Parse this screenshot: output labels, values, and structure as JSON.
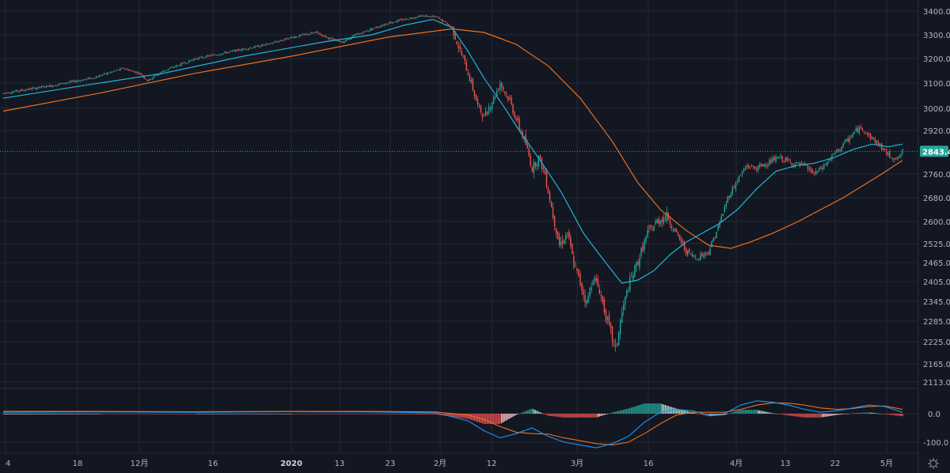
{
  "colors": {
    "background": "#131722",
    "grid": "#262a35",
    "up": "#26a69a",
    "down": "#ef5350",
    "ma_fast": "#21b5d6",
    "ma_slow": "#e8711f",
    "last_price": "#26a69a",
    "text": "#b2b5be"
  },
  "icons": {
    "settings": "gear-icon"
  },
  "last_price_label": "2843.4",
  "chart_data": {
    "type": "candlestick",
    "panels": [
      "price",
      "macd"
    ],
    "price_axis": {
      "labels": [
        "3400.0",
        "3300.0",
        "3200.0",
        "3100.0",
        "3000.0",
        "2920.0",
        "2843.4",
        "2760.0",
        "2680.0",
        "2600.0",
        "2525.0",
        "2465.0",
        "2405.0",
        "2345.0",
        "2285.0",
        "2225.0",
        "2165.0",
        "2113.0"
      ],
      "ylim": [
        2113,
        3420
      ]
    },
    "macd_axis": {
      "labels": [
        "0.0",
        "-100.0"
      ]
    },
    "x_axis": {
      "labels": [
        "4",
        "18",
        "12月",
        "16",
        "2020",
        "13",
        "23",
        "2月",
        "12",
        "3月",
        "16",
        "4月",
        "13",
        "22",
        "5月"
      ]
    },
    "last_price": 2843.4,
    "price_path": [
      [
        0,
        3060
      ],
      [
        30,
        3090
      ],
      [
        55,
        3120
      ],
      [
        75,
        3160
      ],
      [
        85,
        3140
      ],
      [
        90,
        3110
      ],
      [
        100,
        3150
      ],
      [
        120,
        3200
      ],
      [
        150,
        3240
      ],
      [
        165,
        3260
      ],
      [
        180,
        3290
      ],
      [
        195,
        3310
      ],
      [
        205,
        3280
      ],
      [
        212,
        3270
      ],
      [
        220,
        3300
      ],
      [
        240,
        3350
      ],
      [
        260,
        3380
      ],
      [
        270,
        3375
      ],
      [
        276,
        3350
      ],
      [
        280,
        3330
      ],
      [
        284,
        3250
      ],
      [
        288,
        3180
      ],
      [
        292,
        3100
      ],
      [
        296,
        3010
      ],
      [
        300,
        2970
      ],
      [
        306,
        3040
      ],
      [
        310,
        3100
      ],
      [
        316,
        3030
      ],
      [
        320,
        2960
      ],
      [
        326,
        2870
      ],
      [
        330,
        2780
      ],
      [
        334,
        2820
      ],
      [
        338,
        2760
      ],
      [
        343,
        2620
      ],
      [
        347,
        2520
      ],
      [
        352,
        2560
      ],
      [
        356,
        2460
      ],
      [
        360,
        2400
      ],
      [
        364,
        2340
      ],
      [
        368,
        2420
      ],
      [
        372,
        2380
      ],
      [
        376,
        2300
      ],
      [
        382,
        2200
      ],
      [
        386,
        2310
      ],
      [
        390,
        2390
      ],
      [
        396,
        2470
      ],
      [
        402,
        2560
      ],
      [
        408,
        2600
      ],
      [
        414,
        2620
      ],
      [
        420,
        2560
      ],
      [
        426,
        2500
      ],
      [
        432,
        2480
      ],
      [
        440,
        2500
      ],
      [
        446,
        2580
      ],
      [
        452,
        2680
      ],
      [
        458,
        2740
      ],
      [
        464,
        2790
      ],
      [
        470,
        2780
      ],
      [
        476,
        2800
      ],
      [
        484,
        2820
      ],
      [
        492,
        2800
      ],
      [
        500,
        2790
      ],
      [
        506,
        2760
      ],
      [
        512,
        2790
      ],
      [
        518,
        2830
      ],
      [
        526,
        2880
      ],
      [
        532,
        2920
      ],
      [
        536,
        2930
      ],
      [
        540,
        2900
      ],
      [
        546,
        2870
      ],
      [
        552,
        2830
      ],
      [
        558,
        2815
      ],
      [
        561,
        2843
      ]
    ],
    "ma_fast_path": [
      [
        0,
        3040
      ],
      [
        50,
        3090
      ],
      [
        100,
        3140
      ],
      [
        150,
        3210
      ],
      [
        200,
        3270
      ],
      [
        230,
        3300
      ],
      [
        250,
        3340
      ],
      [
        268,
        3365
      ],
      [
        280,
        3330
      ],
      [
        290,
        3230
      ],
      [
        300,
        3120
      ],
      [
        312,
        3010
      ],
      [
        322,
        2920
      ],
      [
        335,
        2810
      ],
      [
        348,
        2700
      ],
      [
        362,
        2560
      ],
      [
        375,
        2470
      ],
      [
        386,
        2400
      ],
      [
        396,
        2410
      ],
      [
        406,
        2440
      ],
      [
        416,
        2490
      ],
      [
        426,
        2530
      ],
      [
        436,
        2560
      ],
      [
        446,
        2590
      ],
      [
        458,
        2640
      ],
      [
        470,
        2710
      ],
      [
        482,
        2770
      ],
      [
        494,
        2790
      ],
      [
        506,
        2800
      ],
      [
        518,
        2820
      ],
      [
        530,
        2850
      ],
      [
        542,
        2870
      ],
      [
        552,
        2860
      ],
      [
        561,
        2870
      ]
    ],
    "ma_slow_path": [
      [
        0,
        2990
      ],
      [
        60,
        3060
      ],
      [
        120,
        3140
      ],
      [
        180,
        3210
      ],
      [
        240,
        3290
      ],
      [
        280,
        3325
      ],
      [
        300,
        3310
      ],
      [
        320,
        3260
      ],
      [
        340,
        3170
      ],
      [
        360,
        3040
      ],
      [
        380,
        2880
      ],
      [
        396,
        2730
      ],
      [
        410,
        2640
      ],
      [
        426,
        2570
      ],
      [
        440,
        2520
      ],
      [
        454,
        2510
      ],
      [
        466,
        2530
      ],
      [
        480,
        2560
      ],
      [
        496,
        2600
      ],
      [
        510,
        2640
      ],
      [
        524,
        2680
      ],
      [
        536,
        2720
      ],
      [
        548,
        2760
      ],
      [
        561,
        2810
      ]
    ],
    "macd_line": [
      [
        0,
        5
      ],
      [
        60,
        6
      ],
      [
        120,
        5
      ],
      [
        180,
        7
      ],
      [
        230,
        6
      ],
      [
        270,
        3
      ],
      [
        290,
        -25
      ],
      [
        300,
        -60
      ],
      [
        310,
        -85
      ],
      [
        320,
        -70
      ],
      [
        330,
        -50
      ],
      [
        340,
        -80
      ],
      [
        350,
        -100
      ],
      [
        360,
        -110
      ],
      [
        370,
        -120
      ],
      [
        380,
        -105
      ],
      [
        390,
        -80
      ],
      [
        400,
        -30
      ],
      [
        410,
        5
      ],
      [
        420,
        15
      ],
      [
        430,
        10
      ],
      [
        440,
        -5
      ],
      [
        450,
        0
      ],
      [
        460,
        30
      ],
      [
        470,
        45
      ],
      [
        480,
        40
      ],
      [
        490,
        30
      ],
      [
        500,
        15
      ],
      [
        510,
        5
      ],
      [
        520,
        10
      ],
      [
        530,
        20
      ],
      [
        540,
        30
      ],
      [
        550,
        25
      ],
      [
        561,
        5
      ]
    ],
    "signal_line": [
      [
        0,
        8
      ],
      [
        60,
        8
      ],
      [
        120,
        7
      ],
      [
        180,
        8
      ],
      [
        230,
        8
      ],
      [
        270,
        6
      ],
      [
        290,
        -5
      ],
      [
        300,
        -20
      ],
      [
        310,
        -45
      ],
      [
        320,
        -65
      ],
      [
        330,
        -70
      ],
      [
        340,
        -72
      ],
      [
        350,
        -85
      ],
      [
        360,
        -95
      ],
      [
        370,
        -105
      ],
      [
        380,
        -110
      ],
      [
        390,
        -100
      ],
      [
        400,
        -70
      ],
      [
        410,
        -35
      ],
      [
        420,
        -5
      ],
      [
        430,
        5
      ],
      [
        440,
        5
      ],
      [
        450,
        5
      ],
      [
        460,
        15
      ],
      [
        470,
        30
      ],
      [
        480,
        38
      ],
      [
        490,
        37
      ],
      [
        500,
        30
      ],
      [
        510,
        20
      ],
      [
        520,
        15
      ],
      [
        530,
        18
      ],
      [
        540,
        25
      ],
      [
        550,
        27
      ],
      [
        561,
        15
      ]
    ]
  }
}
